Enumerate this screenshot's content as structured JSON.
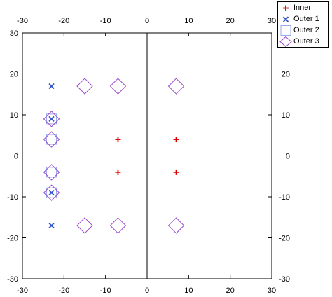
{
  "chart_data": {
    "type": "scatter",
    "title": "",
    "xlabel": "",
    "ylabel": "",
    "xlim": [
      -30,
      30
    ],
    "ylim": [
      -30,
      30
    ],
    "x_ticks": [
      -30,
      -20,
      -10,
      0,
      10,
      20,
      30
    ],
    "y_ticks": [
      -30,
      -20,
      -10,
      0,
      10,
      20,
      30
    ],
    "grid": false,
    "axis_lines_at_zero": true,
    "mirrored_axes": true,
    "legend_position": "top-right",
    "series": [
      {
        "name": "Inner",
        "marker": "plus",
        "color": "#dd0000",
        "points": [
          [
            -7,
            4
          ],
          [
            7,
            4
          ],
          [
            -7,
            -4
          ],
          [
            7,
            -4
          ]
        ]
      },
      {
        "name": "Outer 1",
        "marker": "x",
        "color": "#3355cc",
        "points": [
          [
            -23,
            17
          ],
          [
            -23,
            9
          ],
          [
            -23,
            -9
          ],
          [
            -23,
            -17
          ]
        ]
      },
      {
        "name": "Outer 2",
        "marker": "square",
        "color": "#99aaee",
        "points": [
          [
            -23,
            9
          ],
          [
            -23,
            4
          ],
          [
            -23,
            -4
          ],
          [
            -23,
            -9
          ]
        ]
      },
      {
        "name": "Outer 3",
        "marker": "diamond",
        "color": "#9944cc",
        "points": [
          [
            -23,
            9
          ],
          [
            -23,
            4
          ],
          [
            -23,
            -4
          ],
          [
            -23,
            -9
          ],
          [
            -15,
            17
          ],
          [
            -7,
            17
          ],
          [
            7,
            17
          ],
          [
            -15,
            -17
          ],
          [
            -7,
            -17
          ],
          [
            7,
            -17
          ]
        ]
      }
    ]
  }
}
